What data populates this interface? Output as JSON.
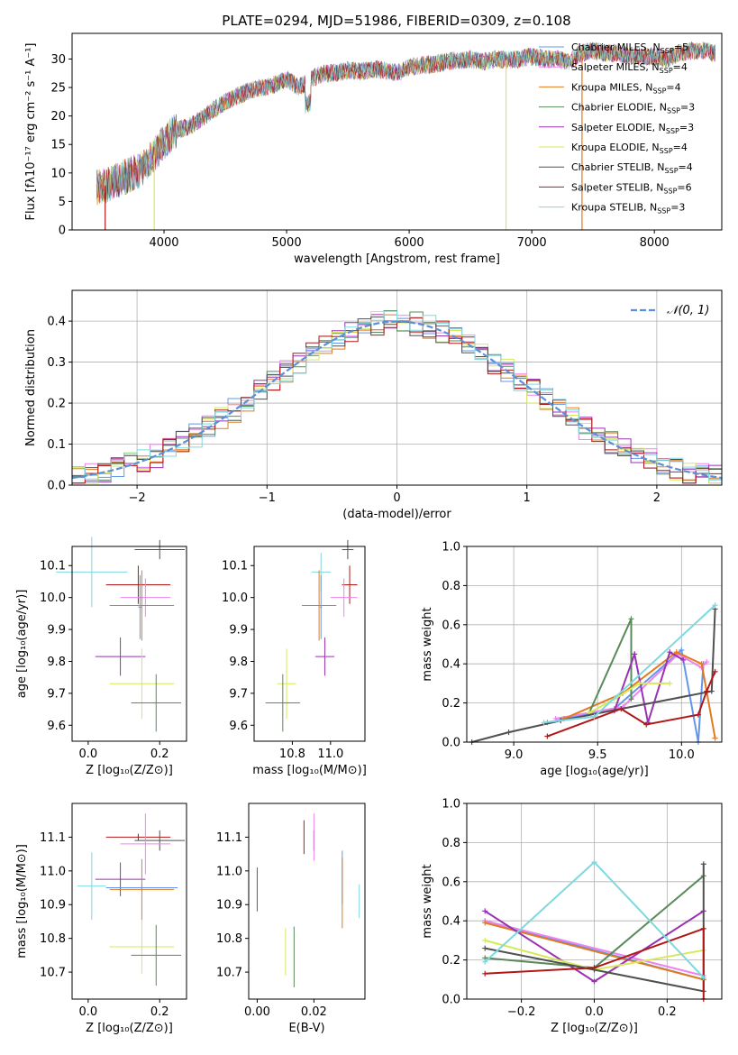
{
  "colors": {
    "chabrier_miles": "#6495ed",
    "salpeter_miles": "#ee82ee",
    "kroupa_miles": "#e07b20",
    "chabrier_elodie": "#5a8a5a",
    "salpeter_elodie": "#9a32b4",
    "kroupa_elodie": "#d4ea5a",
    "chabrier_stelib": "#505050",
    "salpeter_stelib": "#b01818",
    "kroupa_stelib": "#7dd8e0",
    "normal_curve": "#5b8fd6"
  },
  "chart_data": [
    {
      "id": "spectrum",
      "type": "line",
      "title": "PLATE=0294, MJD=51986, FIBERID=0309, z=0.108",
      "xlabel": "wavelength [Angstrom, rest frame]",
      "ylabel": "Flux [fλ10⁻¹⁷ erg cm⁻² s⁻¹ A⁻¹]",
      "xlim": [
        3250,
        8550
      ],
      "ylim": [
        0,
        34.5
      ],
      "xticks": [
        "4000",
        "5000",
        "6000",
        "7000",
        "8000"
      ],
      "yticks": [
        "0",
        "5",
        "10",
        "15",
        "20",
        "25",
        "30"
      ],
      "continuum": {
        "x": [
          3450,
          3520,
          3600,
          3700,
          3800,
          3900,
          4000,
          4100,
          4200,
          4300,
          4400,
          4500,
          4600,
          4700,
          4800,
          4900,
          5000,
          5100,
          5200,
          5300,
          5400,
          5500,
          5600,
          5700,
          5800,
          5900,
          6000,
          6100,
          6200,
          6300,
          6400,
          6500,
          6600,
          6700,
          6800,
          6900,
          7000,
          7100,
          7200,
          7300,
          7400,
          7500,
          7600,
          7700,
          7800,
          7900,
          8000,
          8100,
          8200,
          8300,
          8400,
          8500
        ],
        "y": [
          7.5,
          7.8,
          8.5,
          9.5,
          10.5,
          12.5,
          15.5,
          17.5,
          18.0,
          19.5,
          21.0,
          22.5,
          23.5,
          24.5,
          25.0,
          25.5,
          26.5,
          25.0,
          26.5,
          27.5,
          27.5,
          28.0,
          27.8,
          28.2,
          28.0,
          27.5,
          28.5,
          29.0,
          29.0,
          29.5,
          29.8,
          30.0,
          29.5,
          30.0,
          29.8,
          30.0,
          30.5,
          30.0,
          30.0,
          29.5,
          31.0,
          31.5,
          31.0,
          31.0,
          30.5,
          30.5,
          30.5,
          30.0,
          31.0,
          31.5,
          31.5,
          31.0
        ]
      },
      "spikes": [
        {
          "x": 3520,
          "y": 0,
          "series": "salpeter_stelib"
        },
        {
          "x": 3920,
          "y": 0,
          "series": "kroupa_elodie"
        },
        {
          "x": 6790,
          "y": 0,
          "series": "kroupa_elodie"
        },
        {
          "x": 7410,
          "y": 0,
          "series": "kroupa_miles"
        }
      ],
      "legend_position": "right",
      "legend": [
        {
          "key": "chabrier_miles",
          "label": "Chabrier MILES, N",
          "sub": "SSP",
          "suffix": "=5"
        },
        {
          "key": "salpeter_miles",
          "label": "Salpeter MILES, N",
          "sub": "SSP",
          "suffix": "=4"
        },
        {
          "key": "kroupa_miles",
          "label": "Kroupa MILES, N",
          "sub": "SSP",
          "suffix": "=4"
        },
        {
          "key": "chabrier_elodie",
          "label": "Chabrier ELODIE, N",
          "sub": "SSP",
          "suffix": "=3"
        },
        {
          "key": "salpeter_elodie",
          "label": "Salpeter ELODIE, N",
          "sub": "SSP",
          "suffix": "=3"
        },
        {
          "key": "kroupa_elodie",
          "label": "Kroupa ELODIE, N",
          "sub": "SSP",
          "suffix": "=4"
        },
        {
          "key": "chabrier_stelib",
          "label": "Chabrier STELIB, N",
          "sub": "SSP",
          "suffix": "=4"
        },
        {
          "key": "salpeter_stelib",
          "label": "Salpeter STELIB, N",
          "sub": "SSP",
          "suffix": "=6"
        },
        {
          "key": "kroupa_stelib",
          "label": "Kroupa STELIB, N",
          "sub": "SSP",
          "suffix": "=3"
        }
      ]
    },
    {
      "id": "residuals",
      "type": "line",
      "xlabel": "(data-model)/error",
      "ylabel": "Normed distribution",
      "xlim": [
        -2.5,
        2.5
      ],
      "ylim": [
        0,
        0.475
      ],
      "grid": true,
      "xticks": [
        "−2",
        "−1",
        "0",
        "1",
        "2"
      ],
      "yticks": [
        "0.0",
        "0.1",
        "0.2",
        "0.3",
        "0.4"
      ],
      "legend_label": "𝒩(0, 1)",
      "legend_position": "top-right"
    },
    {
      "id": "age_vs_Z",
      "type": "scatter",
      "xlabel": "Z [log₁₀(Z/Z⊙)]",
      "ylabel": "age  [log₁₀(age/yr)]",
      "xlim": [
        -0.045,
        0.275
      ],
      "ylim": [
        9.55,
        10.16
      ],
      "xticks": [
        "0.0",
        "0.2"
      ],
      "yticks": [
        "9.6",
        "9.7",
        "9.8",
        "9.9",
        "10.0",
        "10.1"
      ],
      "points": [
        {
          "s": "chabrier_stelib",
          "x": 0.2,
          "xe": 0.07,
          "y": 10.15,
          "ye": 0.03
        },
        {
          "s": "kroupa_stelib",
          "x": 0.01,
          "xe": 0.1,
          "y": 10.08,
          "ye": 0.11
        },
        {
          "s": "salpeter_stelib",
          "x": 0.14,
          "xe": 0.09,
          "y": 10.04,
          "ye": 0.06
        },
        {
          "s": "salpeter_miles",
          "x": 0.16,
          "xe": 0.07,
          "y": 10.0,
          "ye": 0.06
        },
        {
          "s": "kroupa_miles",
          "x": 0.15,
          "xe": 0.09,
          "y": 9.975,
          "ye": 0.11
        },
        {
          "s": "chabrier_miles",
          "x": 0.145,
          "xe": 0.005,
          "y": 9.97,
          "ye": 0.1
        },
        {
          "s": "salpeter_elodie",
          "x": 0.09,
          "xe": 0.07,
          "y": 9.815,
          "ye": 0.06
        },
        {
          "s": "kroupa_elodie",
          "x": 0.15,
          "xe": 0.09,
          "y": 9.73,
          "ye": 0.11
        },
        {
          "s": "chabrier_elodie",
          "x": 0.19,
          "xe": 0.07,
          "y": 9.67,
          "ye": 0.09
        }
      ]
    },
    {
      "id": "age_vs_mass",
      "type": "scatter",
      "xlabel": "mass [log₁₀(M/M⊙)]",
      "ylabel": "",
      "xlim": [
        10.6,
        11.18
      ],
      "ylim": [
        9.55,
        10.16
      ],
      "xticks": [
        "10.8",
        "11.0"
      ],
      "yticks": [
        "9.6",
        "9.7",
        "9.8",
        "9.9",
        "10.0",
        "10.1"
      ],
      "points": [
        {
          "s": "chabrier_stelib",
          "x": 11.09,
          "xe": 0.03,
          "y": 10.15,
          "ye": 0.03
        },
        {
          "s": "kroupa_stelib",
          "x": 10.95,
          "xe": 0.05,
          "y": 10.08,
          "ye": 0.06
        },
        {
          "s": "salpeter_stelib",
          "x": 11.1,
          "xe": 0.04,
          "y": 10.04,
          "ye": 0.06
        },
        {
          "s": "salpeter_miles",
          "x": 11.07,
          "xe": 0.07,
          "y": 10.0,
          "ye": 0.06
        },
        {
          "s": "kroupa_miles",
          "x": 10.94,
          "xe": 0.09,
          "y": 9.975,
          "ye": 0.11
        },
        {
          "s": "chabrier_miles",
          "x": 10.95,
          "xe": 0.005,
          "y": 9.97,
          "ye": 0.1
        },
        {
          "s": "salpeter_elodie",
          "x": 10.97,
          "xe": 0.05,
          "y": 9.815,
          "ye": 0.06
        },
        {
          "s": "kroupa_elodie",
          "x": 10.77,
          "xe": 0.05,
          "y": 9.73,
          "ye": 0.11
        },
        {
          "s": "chabrier_elodie",
          "x": 10.75,
          "xe": 0.09,
          "y": 9.67,
          "ye": 0.09
        }
      ]
    },
    {
      "id": "weight_vs_age",
      "type": "line",
      "xlabel": "age  [log₁₀(age/yr)]",
      "ylabel": "mass weight",
      "xlim": [
        8.72,
        10.24
      ],
      "ylim": [
        0,
        1
      ],
      "grid": true,
      "xticks": [
        "9.0",
        "9.5",
        "10.0"
      ],
      "yticks": [
        "0.0",
        "0.2",
        "0.4",
        "0.6",
        "0.8",
        "1.0"
      ],
      "series": [
        {
          "s": "chabrier_miles",
          "x": [
            9.2,
            9.6,
            10.0,
            10.1,
            10.13
          ],
          "y": [
            0.1,
            0.17,
            0.47,
            0.0,
            0.4
          ]
        },
        {
          "s": "salpeter_miles",
          "x": [
            9.25,
            9.65,
            9.98,
            10.12,
            10.15
          ],
          "y": [
            0.12,
            0.18,
            0.45,
            0.38,
            0.41
          ]
        },
        {
          "s": "kroupa_miles",
          "x": [
            9.3,
            9.65,
            9.97,
            10.12,
            10.2
          ],
          "y": [
            0.12,
            0.25,
            0.46,
            0.4,
            0.02
          ]
        },
        {
          "s": "chabrier_elodie",
          "x": [
            9.45,
            9.7,
            9.7
          ],
          "y": [
            0.15,
            0.63,
            0.22
          ]
        },
        {
          "s": "salpeter_elodie",
          "x": [
            9.6,
            9.72,
            9.8,
            9.93,
            10.01
          ],
          "y": [
            0.16,
            0.45,
            0.1,
            0.46,
            0.42
          ]
        },
        {
          "s": "kroupa_elodie",
          "x": [
            9.45,
            9.6,
            9.75,
            9.93
          ],
          "y": [
            0.15,
            0.22,
            0.3,
            0.3
          ]
        },
        {
          "s": "chabrier_stelib",
          "x": [
            8.75,
            8.97,
            9.28,
            10.18,
            10.2
          ],
          "y": [
            0.0,
            0.05,
            0.11,
            0.26,
            0.68
          ]
        },
        {
          "s": "salpeter_stelib",
          "x": [
            9.2,
            9.64,
            9.79,
            10.1,
            10.15,
            10.2
          ],
          "y": [
            0.03,
            0.17,
            0.09,
            0.14,
            0.26,
            0.36
          ]
        },
        {
          "s": "kroupa_stelib",
          "x": [
            9.18,
            9.48,
            10.2
          ],
          "y": [
            0.1,
            0.13,
            0.7
          ]
        }
      ]
    },
    {
      "id": "mass_vs_Z",
      "type": "scatter",
      "xlabel": "Z [log₁₀(Z/Z⊙)]",
      "ylabel": "mass [log₁₀(M/M⊙)]",
      "xlim": [
        -0.045,
        0.275
      ],
      "ylim": [
        10.62,
        11.2
      ],
      "xticks": [
        "0.0",
        "0.2"
      ],
      "yticks": [
        "10.7",
        "10.8",
        "10.9",
        "11.0",
        "11.1"
      ],
      "points": [
        {
          "s": "salpeter_stelib",
          "x": 0.14,
          "xe": 0.09,
          "y": 11.1,
          "ye": 0.01
        },
        {
          "s": "chabrier_stelib",
          "x": 0.2,
          "xe": 0.07,
          "y": 11.09,
          "ye": 0.03
        },
        {
          "s": "salpeter_miles",
          "x": 0.16,
          "xe": 0.07,
          "y": 11.08,
          "ye": 0.09
        },
        {
          "s": "salpeter_elodie",
          "x": 0.09,
          "xe": 0.07,
          "y": 10.975,
          "ye": 0.05
        },
        {
          "s": "kroupa_stelib",
          "x": 0.01,
          "xe": 0.04,
          "y": 10.955,
          "ye": 0.1
        },
        {
          "s": "chabrier_miles",
          "x": 0.15,
          "xe": 0.1,
          "y": 10.95,
          "ye": 0.01
        },
        {
          "s": "kroupa_miles",
          "x": 0.15,
          "xe": 0.09,
          "y": 10.945,
          "ye": 0.09
        },
        {
          "s": "kroupa_elodie",
          "x": 0.15,
          "xe": 0.09,
          "y": 10.775,
          "ye": 0.08
        },
        {
          "s": "chabrier_elodie",
          "x": 0.19,
          "xe": 0.07,
          "y": 10.75,
          "ye": 0.09
        }
      ]
    },
    {
      "id": "mass_vs_EBV",
      "type": "scatter",
      "xlabel": "E(B-V)",
      "ylabel": "",
      "xlim": [
        -0.003,
        0.038
      ],
      "ylim": [
        10.62,
        11.2
      ],
      "xticks": [
        "0.00",
        "0.02"
      ],
      "yticks": [
        "10.7",
        "10.8",
        "10.9",
        "11.0",
        "11.1"
      ],
      "points": [
        {
          "s": "salpeter_stelib",
          "x": 0.0165,
          "y": 11.1,
          "ye": 0.05
        },
        {
          "s": "chabrier_stelib",
          "x": 0.02,
          "y": 11.09,
          "ye": 0.03
        },
        {
          "s": "salpeter_miles",
          "x": 0.02,
          "y": 11.1,
          "ye": 0.07
        },
        {
          "s": "salpeter_elodie",
          "x": 0.0,
          "y": 10.945,
          "ye": 0.065
        },
        {
          "s": "kroupa_stelib",
          "x": 0.036,
          "y": 10.91,
          "ye": 0.05
        },
        {
          "s": "chabrier_miles",
          "x": 0.03,
          "y": 10.98,
          "ye": 0.08
        },
        {
          "s": "kroupa_miles",
          "x": 0.03,
          "y": 10.935,
          "ye": 0.105
        },
        {
          "s": "kroupa_elodie",
          "x": 0.01,
          "y": 10.76,
          "ye": 0.07
        },
        {
          "s": "chabrier_elodie",
          "x": 0.013,
          "y": 10.745,
          "ye": 0.09
        }
      ]
    },
    {
      "id": "weight_vs_Z",
      "type": "line",
      "xlabel": "Z [log₁₀(Z/Z⊙)]",
      "ylabel": "mass weight",
      "xlim": [
        -0.35,
        0.35
      ],
      "ylim": [
        0,
        1
      ],
      "grid": true,
      "xticks": [
        "−0.2",
        "0.0",
        "0.2"
      ],
      "yticks": [
        "0.0",
        "0.2",
        "0.4",
        "0.6",
        "0.8",
        "1.0"
      ],
      "series": [
        {
          "s": "chabrier_miles",
          "x": [
            -0.3,
            0.3
          ],
          "y": [
            0.4,
            0.1
          ]
        },
        {
          "s": "salpeter_miles",
          "x": [
            -0.3,
            0.3
          ],
          "y": [
            0.4,
            0.12
          ]
        },
        {
          "s": "kroupa_miles",
          "x": [
            -0.3,
            0.3
          ],
          "y": [
            0.39,
            0.1
          ]
        },
        {
          "s": "chabrier_elodie",
          "x": [
            -0.3,
            0.0,
            0.3
          ],
          "y": [
            0.21,
            0.16,
            0.63
          ]
        },
        {
          "s": "salpeter_elodie",
          "x": [
            -0.3,
            0.0,
            0.3
          ],
          "y": [
            0.45,
            0.09,
            0.45
          ]
        },
        {
          "s": "kroupa_elodie",
          "x": [
            -0.3,
            0.0,
            0.3
          ],
          "y": [
            0.3,
            0.15,
            0.25
          ]
        },
        {
          "s": "chabrier_stelib",
          "x": [
            -0.3,
            0.0,
            0.3,
            0.3
          ],
          "y": [
            0.26,
            0.15,
            0.04,
            0.69
          ]
        },
        {
          "s": "salpeter_stelib",
          "x": [
            -0.3,
            0.0,
            0.3,
            0.3
          ],
          "y": [
            0.13,
            0.16,
            0.36,
            0.0
          ]
        },
        {
          "s": "kroupa_stelib",
          "x": [
            -0.3,
            0.0,
            0.3
          ],
          "y": [
            0.19,
            0.7,
            0.11
          ]
        }
      ]
    }
  ]
}
